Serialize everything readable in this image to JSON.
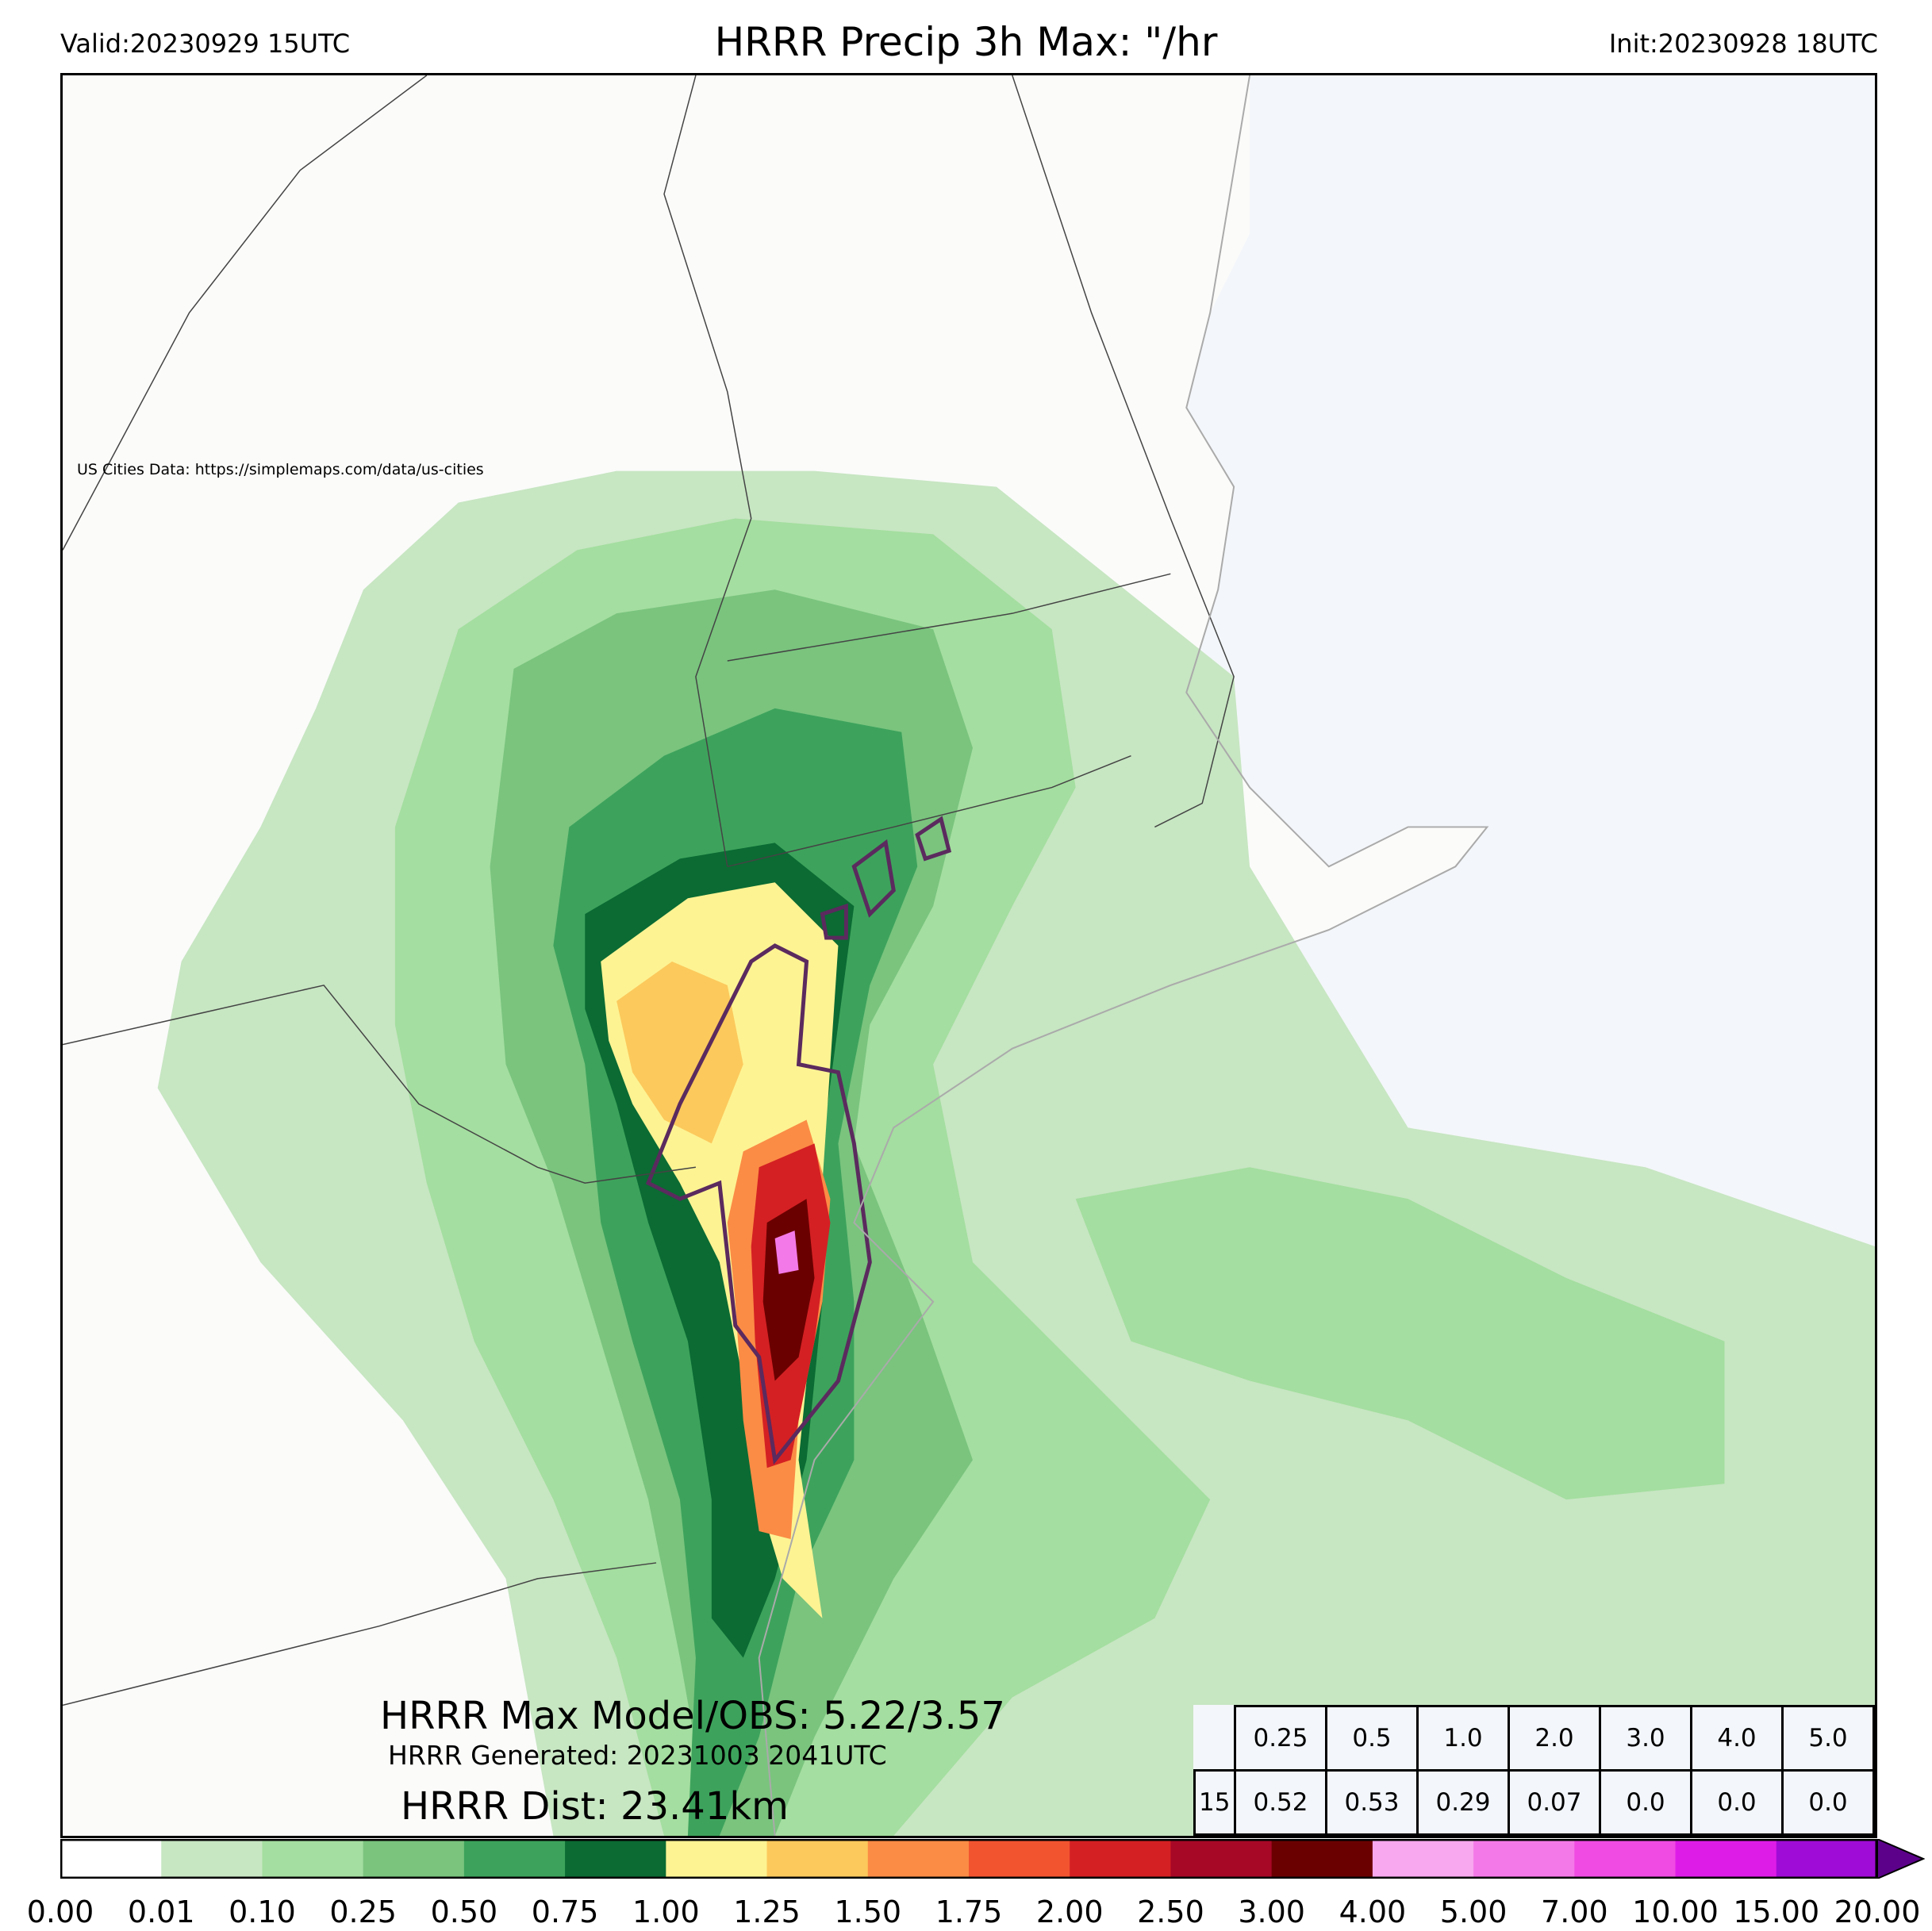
{
  "header": {
    "valid": "Valid:20230929 15UTC",
    "title": "HRRR Precip 3h Max: \"/hr",
    "init": "Init:20230928 18UTC"
  },
  "map": {
    "credit": "US Cities Data: https://simplemaps.com/data/us-cities",
    "ocean_color": "#f3f6fa",
    "land_color": "#fbfbfa"
  },
  "annotations": {
    "max_model_obs": "HRRR Max Model/OBS: 5.22/3.57",
    "generated": "HRRR Generated: 20231003 2041UTC",
    "dist": "HRRR Dist: 23.41km"
  },
  "stats_table": {
    "thresholds": [
      "0.25",
      "0.5",
      "1.0",
      "2.0",
      "3.0",
      "4.0",
      "5.0"
    ],
    "row_label": "15",
    "values": [
      "0.52",
      "0.53",
      "0.29",
      "0.07",
      "0.0",
      "0.0",
      "0.0"
    ]
  },
  "colorbar": {
    "ticks": [
      "0.00",
      "0.01",
      "0.10",
      "0.25",
      "0.50",
      "0.75",
      "1.00",
      "1.25",
      "1.50",
      "1.75",
      "2.00",
      "2.50",
      "3.00",
      "4.00",
      "5.00",
      "7.00",
      "10.00",
      "15.00",
      "20.00"
    ],
    "colors": [
      "#ffffff",
      "#c7e6c2",
      "#a4deA0",
      "#7ac47e",
      "#3da35c",
      "#0b6b33",
      "#fdf393",
      "#fcc95c",
      "#fb8c45",
      "#f2542f",
      "#d42023",
      "#a70826",
      "#6b0000",
      "#f7a8ee",
      "#f479e8",
      "#f04be3",
      "#de1ce8",
      "#a00cd7",
      "#5c028a"
    ]
  }
}
